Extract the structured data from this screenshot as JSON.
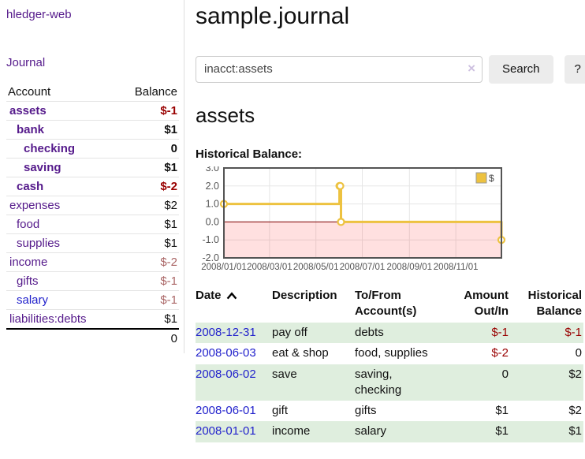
{
  "app": {
    "brand": "hledger-web"
  },
  "sidebar": {
    "journal_link": "Journal",
    "accounts": {
      "header_account": "Account",
      "header_balance": "Balance",
      "rows": [
        {
          "name": "assets",
          "depth": 1,
          "balance": "$-1",
          "in_filter": true
        },
        {
          "name": "bank",
          "depth": 2,
          "balance": "$1",
          "in_filter": true
        },
        {
          "name": "checking",
          "depth": 3,
          "balance": "0",
          "in_filter": true
        },
        {
          "name": "saving",
          "depth": 3,
          "balance": "$1",
          "in_filter": true
        },
        {
          "name": "cash",
          "depth": 2,
          "balance": "$-2",
          "in_filter": true
        },
        {
          "name": "expenses",
          "depth": 1,
          "balance": "$2"
        },
        {
          "name": "food",
          "depth": 2,
          "balance": "$1"
        },
        {
          "name": "supplies",
          "depth": 2,
          "balance": "$1"
        },
        {
          "name": "income",
          "depth": 1,
          "balance": "$-2"
        },
        {
          "name": "gifts",
          "depth": 2,
          "balance": "$-1"
        },
        {
          "name": "salary",
          "depth": 2,
          "balance": "$-1",
          "visited": false
        },
        {
          "name": "liabilities:debts",
          "depth": 1,
          "balance": "$1"
        }
      ],
      "total": "0"
    }
  },
  "main": {
    "title": "sample.journal",
    "search": {
      "value": "inacct:assets",
      "clear_icon": "×",
      "search_button": "Search",
      "help_button": "?"
    },
    "heading": "assets",
    "chart_title": "Historical Balance:"
  },
  "chart_data": {
    "type": "line",
    "step": true,
    "title": "Historical Balance:",
    "series": [
      {
        "name": "$",
        "color": "#edc240",
        "points": [
          {
            "date": "2008-01-01",
            "value": 1
          },
          {
            "date": "2008-06-01",
            "value": 2
          },
          {
            "date": "2008-06-02",
            "value": 2
          },
          {
            "date": "2008-06-03",
            "value": 0
          },
          {
            "date": "2008-12-31",
            "value": -1
          }
        ]
      }
    ],
    "x_range": [
      "2008-01-01",
      "2008-12-31"
    ],
    "x_ticks": [
      "2008/01/01",
      "2008/03/01",
      "2008/05/01",
      "2008/07/01",
      "2008/09/01",
      "2008/11/01"
    ],
    "y_ticks": [
      3.0,
      2.0,
      1.0,
      0.0,
      -1.0,
      -2.0
    ],
    "ylim": [
      -2,
      3
    ],
    "grid": true,
    "legend_position": "top-right",
    "colors": {
      "grid": "#e6e6e6",
      "border": "#545454",
      "zero_line": "#800000",
      "negative_region": "rgba(255,0,0,0.12)",
      "tick_label": "#545454"
    }
  },
  "register": {
    "headers": [
      "Date",
      "Description",
      "To/From Account(s)",
      "Amount Out/In",
      "Historical Balance"
    ],
    "sort": {
      "column": "Date",
      "direction": "ascending"
    },
    "rows": [
      {
        "date": "2008-12-31",
        "description": "pay off",
        "accounts": [
          "debts"
        ],
        "amount": "$-1",
        "balance": "$-1"
      },
      {
        "date": "2008-06-03",
        "description": "eat & shop",
        "accounts": [
          "food",
          "supplies"
        ],
        "amount": "$-2",
        "balance": "0"
      },
      {
        "date": "2008-06-02",
        "description": "save",
        "accounts": [
          "saving",
          "checking"
        ],
        "amount": "0",
        "balance": "$2"
      },
      {
        "date": "2008-06-01",
        "description": "gift",
        "accounts": [
          "gifts"
        ],
        "amount": "$1",
        "balance": "$2"
      },
      {
        "date": "2008-01-01",
        "description": "income",
        "accounts": [
          "salary"
        ],
        "amount": "$1",
        "balance": "$1"
      }
    ]
  },
  "colors": {
    "link_purple": "#551a8b",
    "link_blue": "#2222cc",
    "negative_strong": "#990000",
    "negative_soft": "#aa6666",
    "row_stripe_green": "#dfeede",
    "chart_gold": "#edc240"
  }
}
